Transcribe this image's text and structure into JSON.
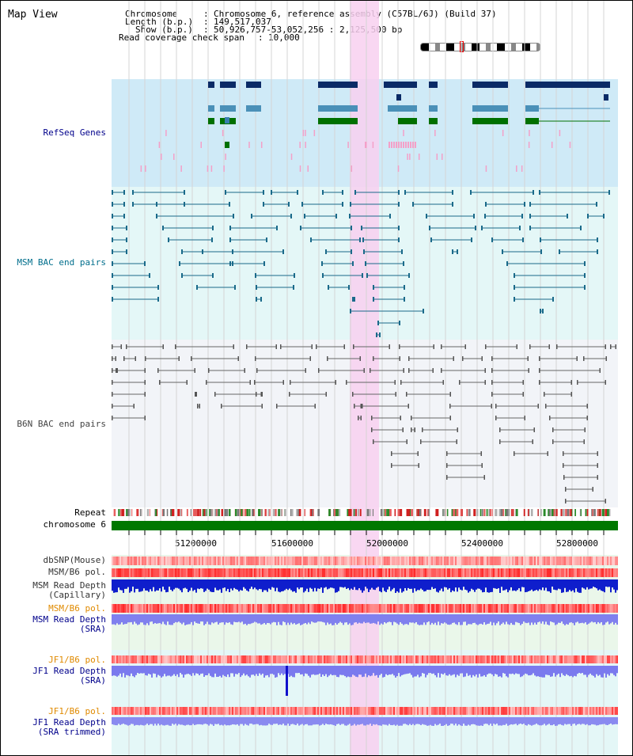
{
  "view": {
    "title": "Map View"
  },
  "header": {
    "chromosome_label": "Chromosome",
    "chromosome_value": "Chromosome 6, reference assembly (C57BL/6J) (Build 37)",
    "length_label": "Length (b.p.)",
    "length_value": "149,517,037",
    "show_label": "Show (b.p.)",
    "show_value": "50,926,757-53,052,256 : 2,125,500 bp",
    "span_label": "Read coverage check span",
    "span_value": "10,000"
  },
  "tracks": {
    "refseq": "RefSeq Genes",
    "msm_bac": "MSM BAC end pairs",
    "b6n_bac": "B6N BAC end pairs",
    "repeat": "Repeat",
    "chromosome": "chromosome 6",
    "dbsnp": "dbSNP(Mouse)",
    "msm_b6_pol": "MSM/B6 pol.",
    "msm_read_depth_cap_1": "MSM Read Depth",
    "msm_read_depth_cap_2": "(Capillary)",
    "msm_b6_pol2": "MSM/B6 pol.",
    "msm_read_depth_sra_1": "MSM Read Depth",
    "msm_read_depth_sra_2": "(SRA)",
    "jf1_b6_pol": "JF1/B6 pol.",
    "jf1_read_depth_sra_1": "JF1 Read Depth",
    "jf1_read_depth_sra_2": "(SRA)",
    "jf1_b6_pol2": "JF1/B6 pol.",
    "jf1_read_depth_trim_1": "JF1 Read Depth",
    "jf1_read_depth_trim_2": "(SRA trimmed)"
  },
  "axis": {
    "ticks": [
      "51200000",
      "51600000",
      "52000000",
      "52400000",
      "52800000"
    ]
  },
  "colors": {
    "refseq_bg": "#cfeaf7",
    "msm_bg": "#e4f7f7",
    "b6n_bg": "#f2f4f8",
    "highlight": "#f8d0f0",
    "chromosome_bar": "#007800",
    "label_blue": "#00008b",
    "label_orange": "#e08a00",
    "label_teal": "#006e8c"
  }
}
